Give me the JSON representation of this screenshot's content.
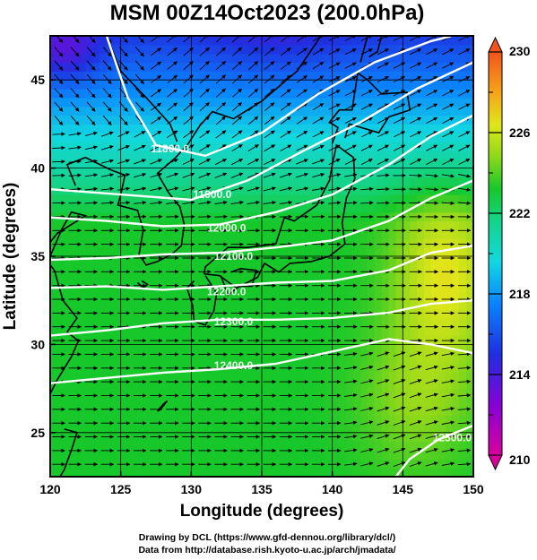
{
  "title": "MSM 00Z14Oct2023 (200.0hPa)",
  "xlabel": "Longitude (degrees)",
  "ylabel": "Latitude  (degrees)",
  "x_ticks": [
    "120",
    "125",
    "130",
    "135",
    "140",
    "145",
    "150"
  ],
  "y_ticks": [
    "25",
    "30",
    "35",
    "40",
    "45"
  ],
  "colorbar": {
    "ticks": [
      "230",
      "226",
      "222",
      "218",
      "214",
      "210"
    ],
    "min": 210,
    "max": 230
  },
  "contour_labels": [
    "11800.0",
    "11900.0",
    "12000.0",
    "12100.0",
    "12200.0",
    "12300.0",
    "12400.0",
    "12500.0"
  ],
  "credit_line1": "Drawing by DCL (https://www.gfd-dennou.org/library/dcl/)",
  "credit_line2": "Data from http://database.rish.kyoto-u.ac.jp/arch/jmadata/",
  "colors": {
    "background": "#ffffff",
    "frame": "#000000",
    "contour": "#ffffff",
    "vector": "#000000"
  },
  "chart_data": {
    "type": "heatmap",
    "x_range": [
      120,
      150
    ],
    "y_range": [
      22.5,
      47.5
    ],
    "color_range": [
      210,
      230
    ],
    "x_grid": [
      120,
      125,
      130,
      135,
      140,
      145,
      150
    ],
    "y_grid": [
      25,
      30,
      35,
      40,
      45
    ],
    "contour_levels": [
      11800,
      11900,
      12000,
      12100,
      12200,
      12300,
      12400,
      12500
    ],
    "overlays": [
      "geopotential height contours",
      "wind vectors",
      "coastlines"
    ]
  }
}
